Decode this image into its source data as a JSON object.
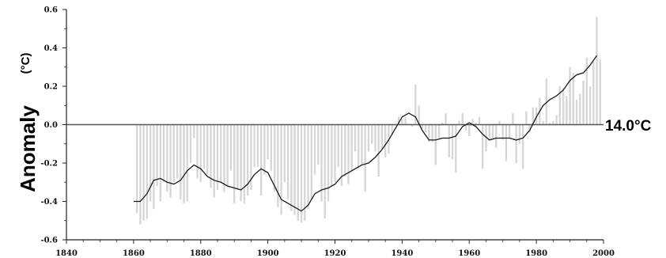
{
  "chart_data": {
    "type": "bar",
    "ylabel_main": "Anomaly",
    "ylabel_unit": "(°C)",
    "reference_label": "14.0°C",
    "xlim": [
      1840,
      2000
    ],
    "ylim": [
      -0.6,
      0.6
    ],
    "x_ticks": [
      1840,
      1860,
      1880,
      1900,
      1920,
      1940,
      1960,
      1980,
      2000
    ],
    "x_tick_labels": [
      "1840",
      "1860",
      "1880",
      "1900",
      "1920",
      "1940",
      "1960",
      "1980",
      "2000"
    ],
    "y_ticks": [
      -0.6,
      -0.4,
      -0.2,
      0.0,
      0.2,
      0.4,
      0.6
    ],
    "y_tick_labels": [
      "-0.6",
      "-0.4",
      "-0.2",
      "0.0",
      "0.2",
      "0.4",
      "0.6"
    ],
    "grid": false,
    "colors": {
      "bars": "#d6d6d6",
      "smoothed": "#1a1a1a",
      "zero_line": "#555555",
      "axes": "#222222"
    },
    "series": [
      {
        "kind": "annual-bars",
        "x": [
          1861,
          1862,
          1863,
          1864,
          1865,
          1866,
          1867,
          1868,
          1869,
          1870,
          1871,
          1872,
          1873,
          1874,
          1875,
          1876,
          1877,
          1878,
          1879,
          1880,
          1881,
          1882,
          1883,
          1884,
          1885,
          1886,
          1887,
          1888,
          1889,
          1890,
          1891,
          1892,
          1893,
          1894,
          1895,
          1896,
          1897,
          1898,
          1899,
          1900,
          1901,
          1902,
          1903,
          1904,
          1905,
          1906,
          1907,
          1908,
          1909,
          1910,
          1911,
          1912,
          1913,
          1914,
          1915,
          1916,
          1917,
          1918,
          1919,
          1920,
          1921,
          1922,
          1923,
          1924,
          1925,
          1926,
          1927,
          1928,
          1929,
          1930,
          1931,
          1932,
          1933,
          1934,
          1935,
          1936,
          1937,
          1938,
          1939,
          1940,
          1941,
          1942,
          1943,
          1944,
          1945,
          1946,
          1947,
          1948,
          1949,
          1950,
          1951,
          1952,
          1953,
          1954,
          1955,
          1956,
          1957,
          1958,
          1959,
          1960,
          1961,
          1962,
          1963,
          1964,
          1965,
          1966,
          1967,
          1968,
          1969,
          1970,
          1971,
          1972,
          1973,
          1974,
          1975,
          1976,
          1977,
          1978,
          1979,
          1980,
          1981,
          1982,
          1983,
          1984,
          1985,
          1986,
          1987,
          1988,
          1989,
          1990,
          1991,
          1992,
          1993,
          1994,
          1995,
          1996,
          1997,
          1998,
          1999
        ],
        "values": [
          -0.46,
          -0.52,
          -0.5,
          -0.49,
          -0.4,
          -0.44,
          -0.32,
          -0.4,
          -0.3,
          -0.35,
          -0.38,
          -0.3,
          -0.28,
          -0.39,
          -0.41,
          -0.4,
          -0.2,
          -0.07,
          -0.28,
          -0.3,
          -0.23,
          -0.26,
          -0.33,
          -0.38,
          -0.34,
          -0.3,
          -0.35,
          -0.32,
          -0.24,
          -0.41,
          -0.34,
          -0.4,
          -0.41,
          -0.37,
          -0.34,
          -0.22,
          -0.22,
          -0.37,
          -0.26,
          -0.18,
          -0.24,
          -0.35,
          -0.43,
          -0.47,
          -0.3,
          -0.39,
          -0.45,
          -0.47,
          -0.5,
          -0.51,
          -0.5,
          -0.44,
          -0.39,
          -0.26,
          -0.21,
          -0.4,
          -0.49,
          -0.4,
          -0.32,
          -0.3,
          -0.22,
          -0.32,
          -0.27,
          -0.31,
          -0.24,
          -0.14,
          -0.23,
          -0.21,
          -0.35,
          -0.14,
          -0.1,
          -0.14,
          -0.27,
          -0.13,
          -0.17,
          -0.15,
          -0.05,
          0.0,
          0.04,
          0.03,
          0.04,
          0.0,
          -0.01,
          0.21,
          0.1,
          -0.02,
          -0.04,
          -0.09,
          -0.09,
          -0.21,
          -0.07,
          0.01,
          0.06,
          -0.17,
          -0.18,
          -0.25,
          0.02,
          0.06,
          -0.03,
          -0.06,
          0.03,
          0.01,
          0.04,
          -0.23,
          -0.14,
          -0.07,
          -0.07,
          -0.12,
          0.02,
          -0.08,
          -0.19,
          -0.07,
          0.06,
          -0.2,
          -0.1,
          -0.23,
          0.07,
          -0.04,
          0.09,
          0.09,
          0.14,
          0.02,
          0.24,
          0.01,
          0.02,
          0.05,
          0.2,
          0.19,
          0.15,
          0.3,
          0.27,
          0.13,
          0.16,
          0.23,
          0.35,
          0.2,
          0.33,
          0.56,
          0.34
        ]
      },
      {
        "kind": "smoothed-curve",
        "x": [
          1860,
          1862,
          1864,
          1866,
          1868,
          1870,
          1872,
          1874,
          1876,
          1878,
          1880,
          1882,
          1884,
          1886,
          1888,
          1890,
          1892,
          1894,
          1896,
          1898,
          1900,
          1902,
          1904,
          1906,
          1908,
          1910,
          1912,
          1914,
          1916,
          1918,
          1920,
          1922,
          1924,
          1926,
          1928,
          1930,
          1932,
          1934,
          1936,
          1938,
          1940,
          1942,
          1944,
          1946,
          1948,
          1950,
          1952,
          1954,
          1956,
          1958,
          1960,
          1962,
          1964,
          1966,
          1968,
          1970,
          1972,
          1974,
          1976,
          1978,
          1980,
          1982,
          1984,
          1986,
          1988,
          1990,
          1992,
          1994,
          1996,
          1998
        ],
        "values": [
          -0.4,
          -0.4,
          -0.36,
          -0.29,
          -0.28,
          -0.3,
          -0.31,
          -0.29,
          -0.24,
          -0.21,
          -0.23,
          -0.27,
          -0.29,
          -0.3,
          -0.32,
          -0.33,
          -0.34,
          -0.31,
          -0.26,
          -0.23,
          -0.25,
          -0.32,
          -0.39,
          -0.41,
          -0.43,
          -0.45,
          -0.42,
          -0.36,
          -0.34,
          -0.33,
          -0.31,
          -0.27,
          -0.25,
          -0.23,
          -0.21,
          -0.2,
          -0.17,
          -0.13,
          -0.08,
          -0.02,
          0.04,
          0.06,
          0.04,
          -0.03,
          -0.08,
          -0.08,
          -0.07,
          -0.07,
          -0.06,
          -0.01,
          0.01,
          -0.01,
          -0.05,
          -0.08,
          -0.07,
          -0.07,
          -0.07,
          -0.08,
          -0.07,
          -0.03,
          0.04,
          0.1,
          0.13,
          0.15,
          0.18,
          0.23,
          0.26,
          0.27,
          0.31,
          0.36
        ]
      }
    ]
  }
}
